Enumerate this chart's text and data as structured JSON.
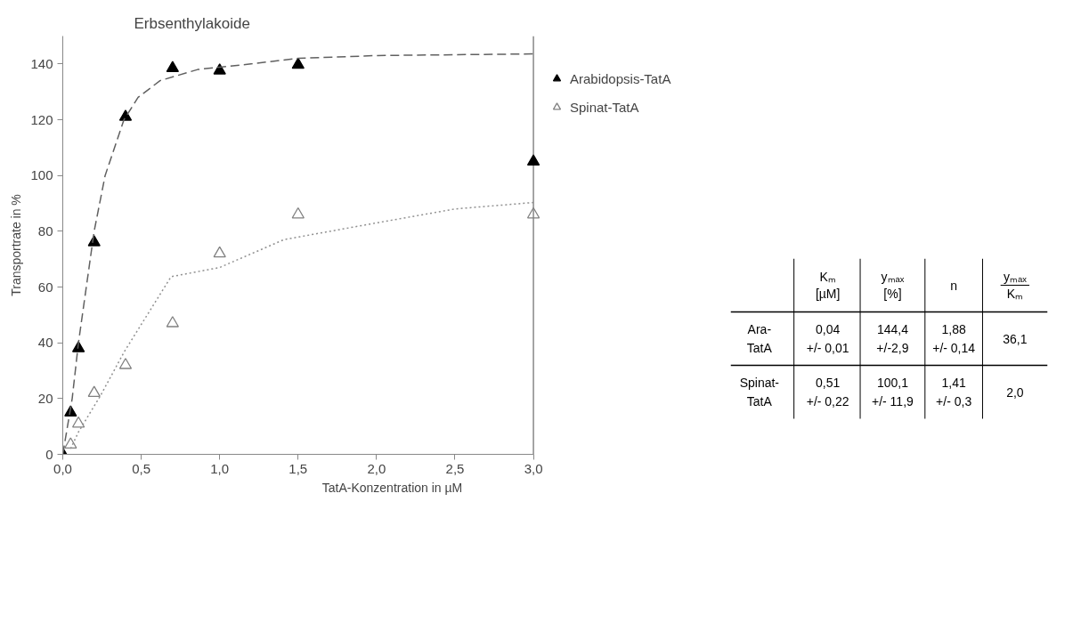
{
  "chart_data": [
    {
      "type": "scatter",
      "title": "Erbsenthylakoide",
      "xlabel": "TatA-Konzentration in µM",
      "ylabel": "Transportrate in %",
      "xlim": [
        0,
        3
      ],
      "ylim": [
        0,
        150
      ],
      "xticks": [
        {
          "value": 0,
          "label": "0,0"
        },
        {
          "value": 0.5,
          "label": "0,5"
        },
        {
          "value": 1,
          "label": "1,0"
        },
        {
          "value": 1.5,
          "label": "1,5"
        },
        {
          "value": 2,
          "label": "2,0"
        },
        {
          "value": 2.5,
          "label": "2,5"
        },
        {
          "value": 3,
          "label": "3,0"
        }
      ],
      "yticks": [
        0,
        20,
        40,
        60,
        80,
        100,
        120,
        140
      ],
      "grid": false,
      "legend": "right",
      "marker": "triangle",
      "series": [
        {
          "name": "Arabidopsis-TatA",
          "color": "#000000",
          "x": [
            0,
            0.05,
            0.1,
            0.2,
            0.4,
            0.7,
            1.0,
            1.5,
            3.0
          ],
          "values": [
            0,
            15,
            38,
            76,
            121,
            138.5,
            137.6,
            139.7,
            105
          ]
        },
        {
          "name": "Spinat-TatA",
          "color": "#808080",
          "x": [
            0.05,
            0.1,
            0.2,
            0.4,
            0.7,
            1.0,
            1.5,
            3.0
          ],
          "values": [
            3.5,
            11,
            22,
            32,
            47,
            72,
            86,
            86
          ]
        },
        {
          "type": "line",
          "marker": "none",
          "line_style": "dashed",
          "color": "#606060",
          "x": [
            0,
            0.06,
            0.1,
            0.2,
            0.27,
            0.39,
            0.48,
            0.62,
            0.86,
            1.2,
            1.5,
            2.0,
            3.0
          ],
          "values": [
            0,
            20,
            40,
            80,
            100,
            120,
            128,
            134,
            138,
            140,
            142,
            143,
            143.6
          ]
        },
        {
          "type": "line",
          "marker": "none",
          "line_style": "dotted",
          "color": "#909090",
          "x": [
            0.05,
            0.1,
            0.24,
            0.39,
            0.69,
            1.0,
            1.41,
            2.0,
            2.5,
            3.0
          ],
          "values": [
            2,
            8,
            21,
            36.6,
            63.7,
            67,
            77,
            83,
            88,
            90.3
          ]
        }
      ]
    },
    {
      "type": "other",
      "annotations": [
        "Kₘ\n[µM]",
        "yₘₐₓ\n[%]",
        "n",
        "yₘₐₓ\nKₘ",
        "Ara-\nTatA",
        "0,04\n+/- 0,01",
        "144,4\n+/-2,9",
        "1,88\n+/- 0,14",
        "36,1",
        "Spinat-\nTatA",
        "0,51\n+/- 0,22",
        "100,1\n+/- 11,9",
        "1,41\n+/- 0,3",
        "2,0"
      ]
    }
  ]
}
